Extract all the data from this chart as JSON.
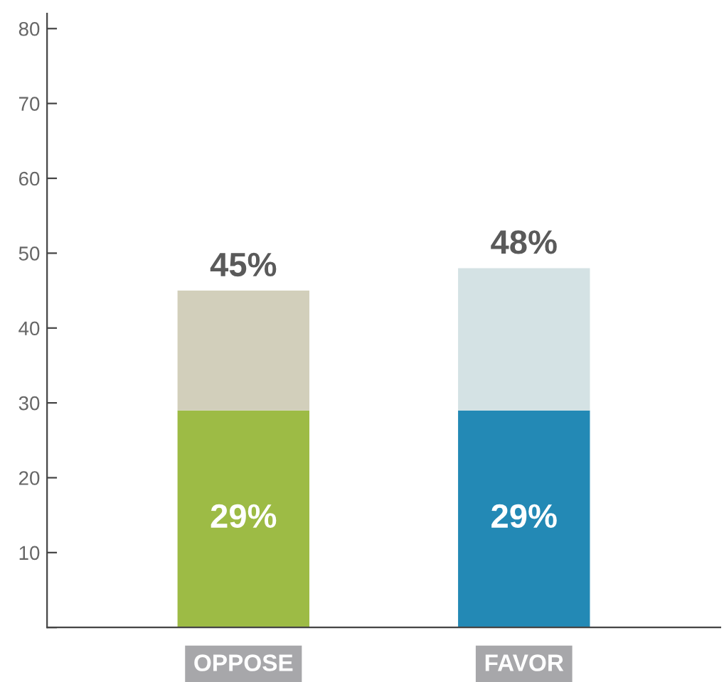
{
  "chart_data": {
    "type": "bar",
    "stacked": true,
    "categories": [
      "OPPOSE",
      "FAVOR"
    ],
    "series": [
      {
        "colors": [
          "#9dbb45",
          "#2389b5"
        ],
        "values": [
          29,
          29
        ],
        "value_labels": [
          "29%",
          "29%"
        ]
      },
      {
        "colors": [
          "#d2cfbb",
          "#d4e2e4"
        ],
        "values": [
          16,
          19
        ]
      }
    ],
    "totals": [
      "45%",
      "48%"
    ],
    "ylim": [
      0,
      82
    ],
    "yticks": [
      {
        "value": 0,
        "label": null
      },
      10,
      20,
      30,
      40,
      50,
      60,
      70,
      80
    ],
    "grid": false,
    "legend": false
  }
}
